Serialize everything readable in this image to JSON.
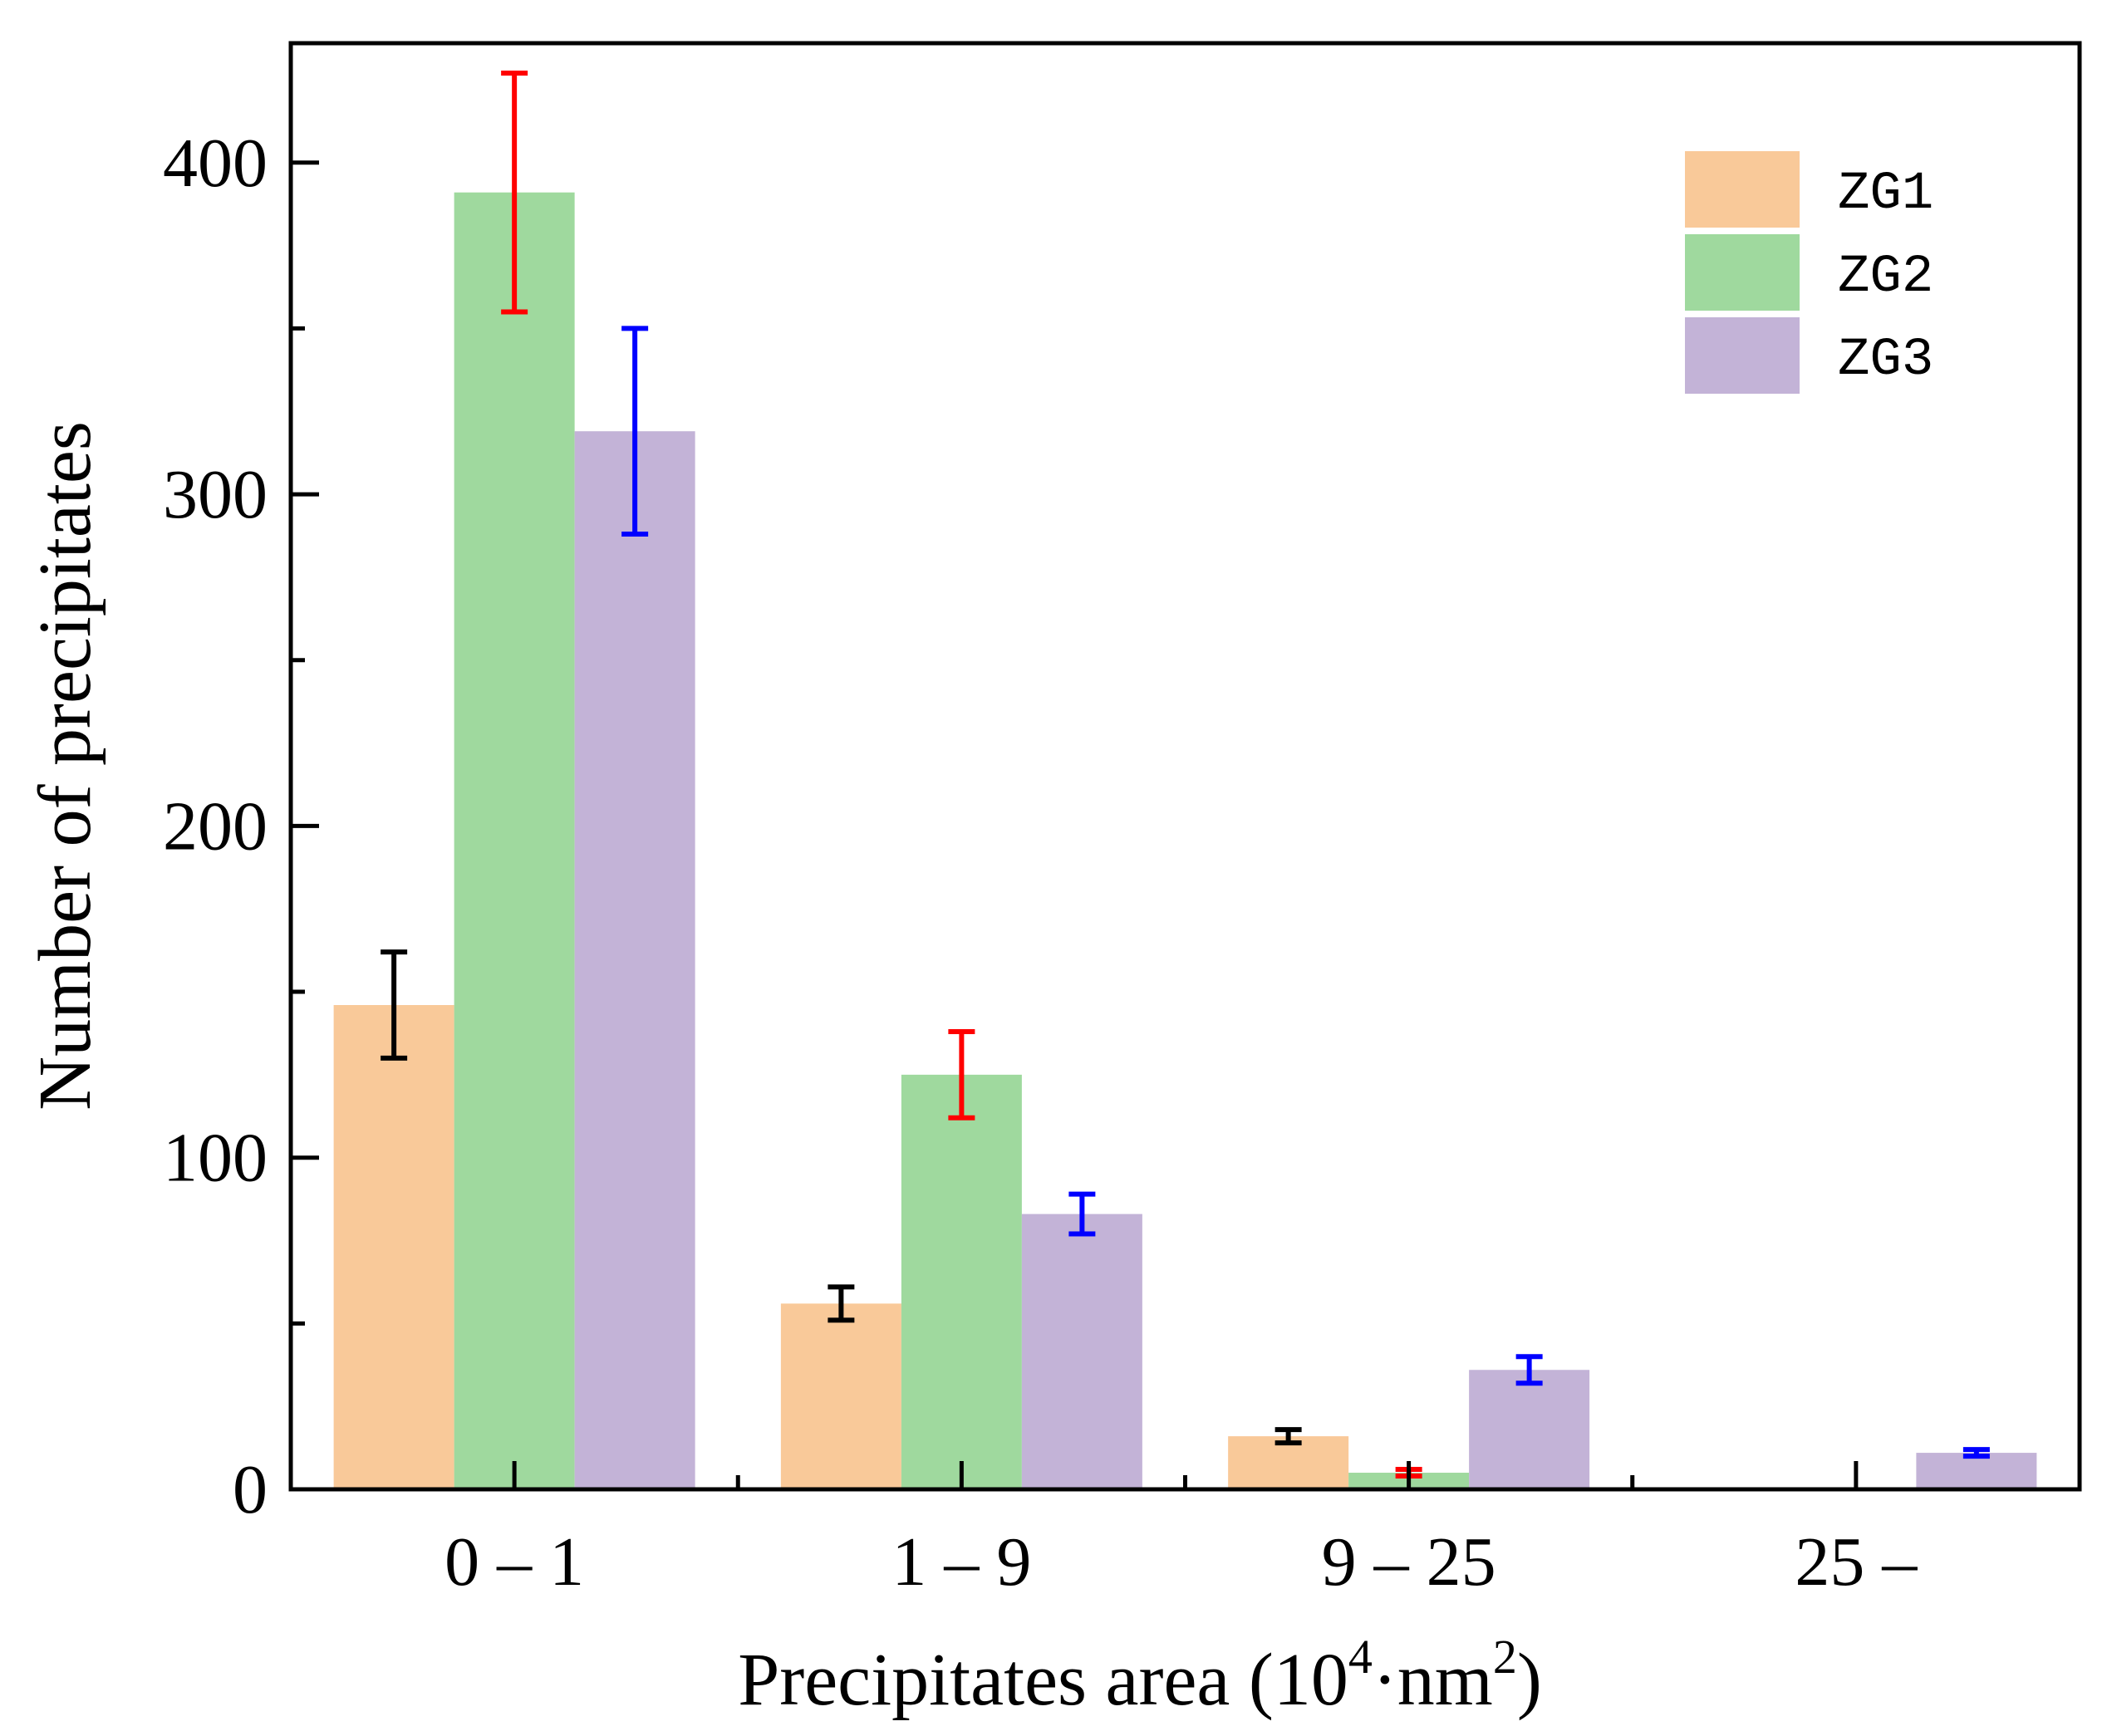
{
  "chart_data": {
    "type": "bar",
    "title": "",
    "xlabel": {
      "main": "Precipitates area (10",
      "sup1": "4",
      "mid": "·nm",
      "sup2": "2",
      "end": ")"
    },
    "ylabel": "Number of precipitates",
    "categories": [
      "0 – 1",
      "1 – 9",
      "9 – 25",
      "25 –"
    ],
    "ylim": [
      0,
      436
    ],
    "yticks": [
      0,
      100,
      200,
      300,
      400
    ],
    "y_minor_ticks": [
      50,
      150,
      250,
      350
    ],
    "legend_position": "top-right",
    "series": [
      {
        "name": "ZG1",
        "color": "#F9C999",
        "error_color": "#000000",
        "values": [
          146,
          56,
          16,
          0
        ],
        "errors": [
          16,
          5,
          2,
          0
        ]
      },
      {
        "name": "ZG2",
        "color": "#9FD99E",
        "error_color": "#FF0000",
        "values": [
          391,
          125,
          5,
          0
        ],
        "errors": [
          36,
          13,
          1,
          0
        ]
      },
      {
        "name": "ZG3",
        "color": "#C3B3D7",
        "error_color": "#0000FF",
        "values": [
          319,
          83,
          36,
          11
        ],
        "errors": [
          31,
          6,
          4,
          1
        ]
      }
    ]
  }
}
